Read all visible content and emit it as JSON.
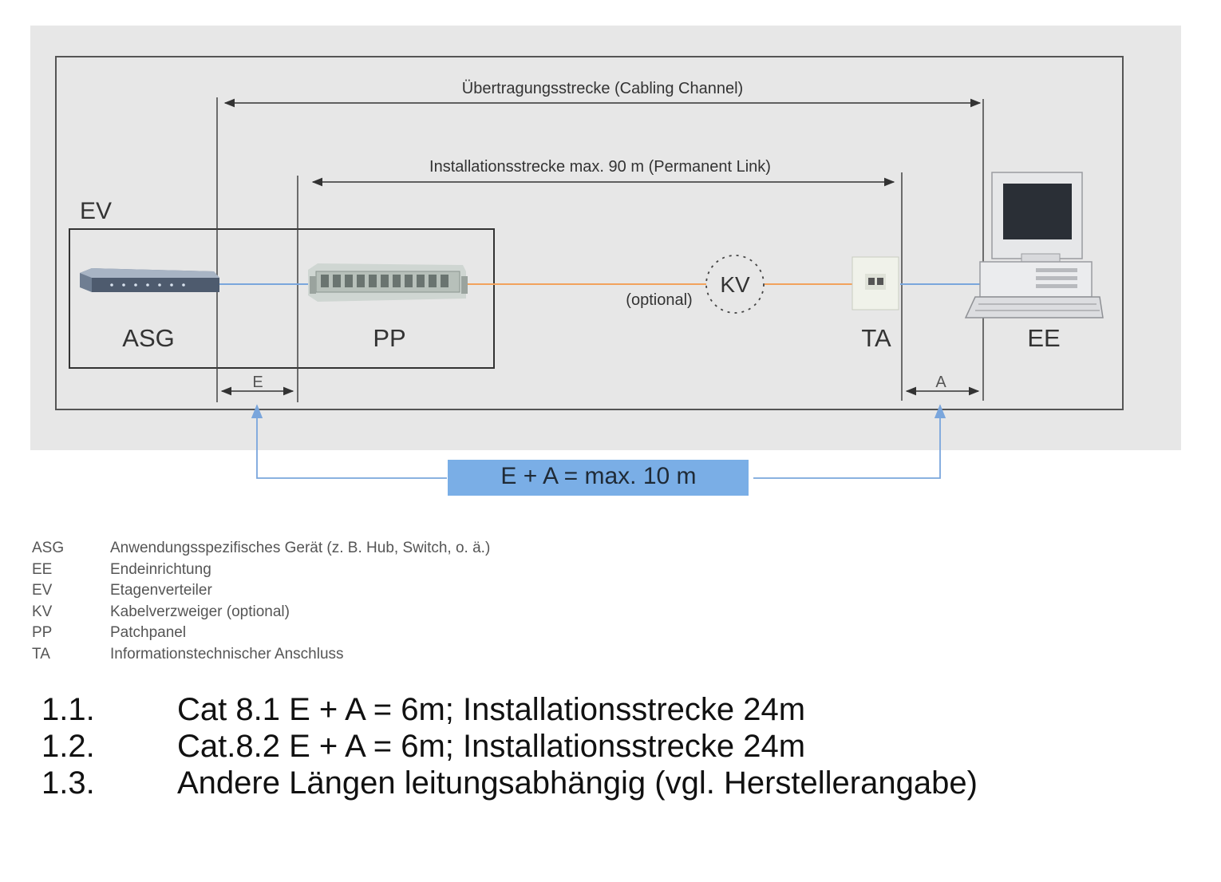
{
  "diagram": {
    "channel_label": "Übertragungsstrecke (Cabling Channel)",
    "permanent_label": "Installationsstrecke max. 90 m (Permanent Link)",
    "ev_label": "EV",
    "asg_label": "ASG",
    "pp_label": "PP",
    "kv_label": "KV",
    "optional_label": "(optional)",
    "ta_label": "TA",
    "ee_label": "EE",
    "e_label": "E",
    "a_label": "A",
    "sum_label": "E + A = max. 10 m",
    "colors": {
      "background": "#e7e7e7",
      "copper_line": "#f2a25c",
      "patch_line": "#7aa6dc",
      "sum_box": "#7aaee6",
      "arrow": "#333333"
    }
  },
  "legend": [
    {
      "abbr": "ASG",
      "text": "Anwendungsspezifisches Gerät (z. B. Hub, Switch, o. ä.)"
    },
    {
      "abbr": "EE",
      "text": "Endeinrichtung"
    },
    {
      "abbr": "EV",
      "text": "Etagenverteiler"
    },
    {
      "abbr": "KV",
      "text": "Kabelverzweiger (optional)"
    },
    {
      "abbr": "PP",
      "text": "Patchpanel"
    },
    {
      "abbr": "TA",
      "text": "Informationstechnischer Anschluss"
    }
  ],
  "notes": [
    {
      "num": "1.1.",
      "text": "Cat 8.1 E + A = 6m; Installationsstrecke 24m"
    },
    {
      "num": "1.2.",
      "text": "Cat.8.2 E + A = 6m; Installationsstrecke 24m"
    },
    {
      "num": "1.3.",
      "text": "Andere Längen leitungsabhängig (vgl. Herstellerangabe)"
    }
  ]
}
